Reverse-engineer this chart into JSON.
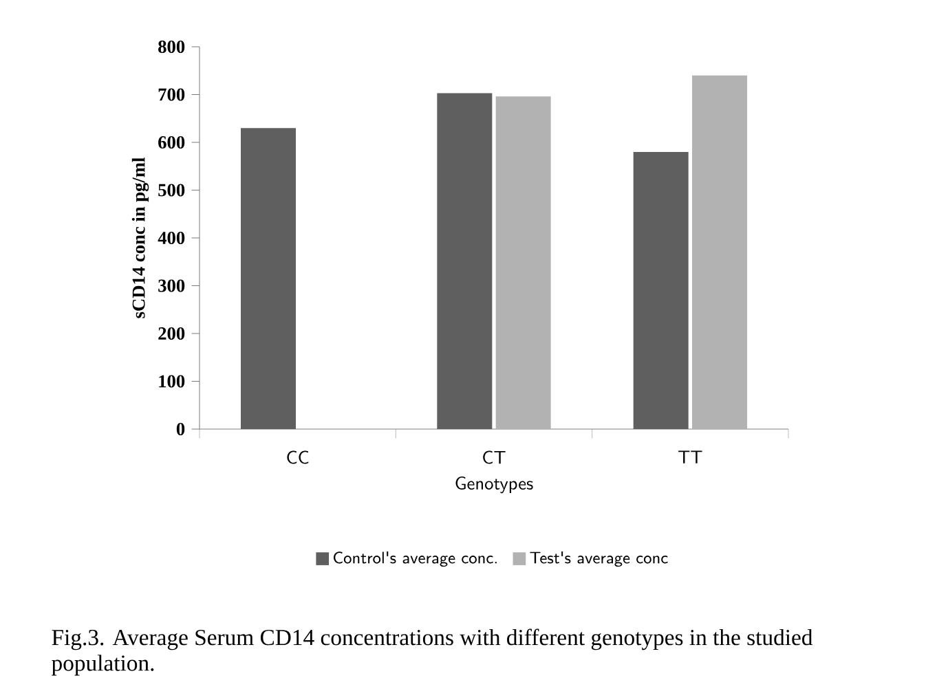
{
  "chart_data": {
    "type": "bar",
    "categories": [
      "CC",
      "CT",
      "TT"
    ],
    "series": [
      {
        "name": "Control's average conc.",
        "color": "#5f5f5f",
        "values": [
          630,
          703,
          580
        ]
      },
      {
        "name": "Test's average conc",
        "color": "#b2b2b2",
        "values": [
          null,
          696,
          740
        ]
      }
    ],
    "xlabel": "Genotypes",
    "ylabel": "sCD14  conc in pg/ml",
    "ylim": [
      0,
      800
    ],
    "yticks": [
      0,
      100,
      200,
      300,
      400,
      500,
      600,
      700,
      800
    ],
    "legend": "bottom",
    "annotations": [
      "Fig.3. Average Serum CD14 concentrations with different genotypes in the studied population."
    ]
  }
}
